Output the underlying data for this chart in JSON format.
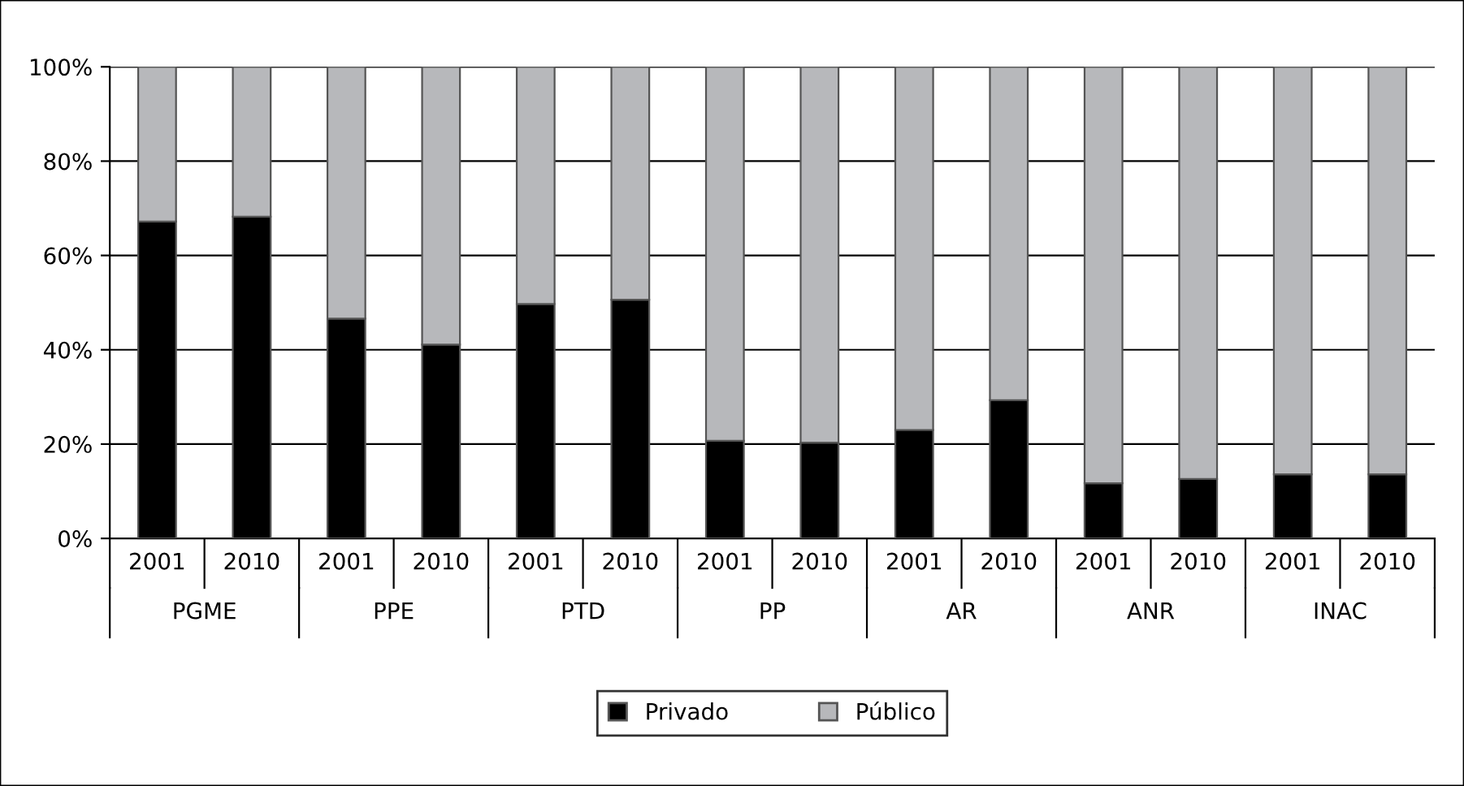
{
  "chart_data": {
    "type": "bar",
    "stacked": true,
    "categories": [
      "2001",
      "2010",
      "2001",
      "2010",
      "2001",
      "2010",
      "2001",
      "2010",
      "2001",
      "2010",
      "2001",
      "2010",
      "2001",
      "2010"
    ],
    "annotations": [
      "PGME",
      "PPE",
      "PTD",
      "PP",
      "AR",
      "ANR",
      "INAC"
    ],
    "series": [
      {
        "name": "Privado",
        "color": "#000000",
        "values": [
          67.2,
          68.2,
          46.6,
          41.1,
          49.7,
          50.6,
          20.7,
          20.3,
          23,
          29.3,
          11.7,
          12.6,
          13.6,
          13.6
        ]
      },
      {
        "name": "Público",
        "color": "#b7b8bb",
        "values": [
          32.8,
          31.8,
          53.4,
          58.9,
          50.3,
          49.4,
          79.3,
          79.7,
          77,
          70.7,
          88.3,
          87.4,
          86.4,
          86.4
        ]
      }
    ],
    "ylim": [
      0,
      100
    ],
    "yticks": [
      {
        "value": 0,
        "label": "0%"
      },
      {
        "value": 20,
        "label": "20%"
      },
      {
        "value": 40,
        "label": "40%"
      },
      {
        "value": 60,
        "label": "60%"
      },
      {
        "value": 80,
        "label": "80%"
      },
      {
        "value": 100,
        "label": "100%"
      }
    ],
    "grid": "y",
    "legend": "bottom"
  }
}
